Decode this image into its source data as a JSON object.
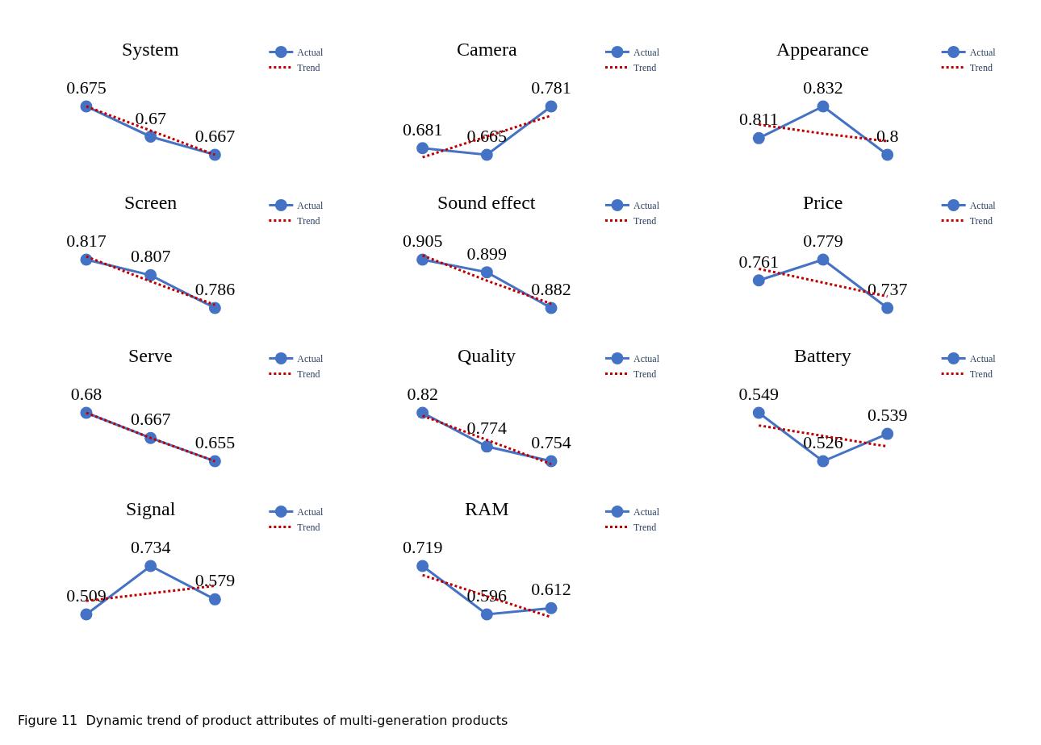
{
  "chart_data": [
    {
      "type": "line",
      "title": "System",
      "categories": [
        null,
        null,
        null
      ],
      "legend": "top right",
      "tick_labels": false,
      "series": [
        {
          "name": "Actual",
          "color": "#4472c4",
          "marker": "circle",
          "values": [
            0.675,
            0.67,
            0.667
          ],
          "value_labels": [
            "0.675",
            "0.67",
            "0.667"
          ]
        },
        {
          "name": "Trend",
          "color": "#c00000",
          "line_style": "dotted",
          "marker": "none",
          "values": [
            0.675,
            0.671,
            0.667
          ]
        }
      ]
    },
    {
      "type": "line",
      "title": "Camera",
      "categories": [
        null,
        null,
        null
      ],
      "legend": "top right",
      "tick_labels": false,
      "series": [
        {
          "name": "Actual",
          "color": "#4472c4",
          "marker": "circle",
          "values": [
            0.681,
            0.665,
            0.781
          ],
          "value_labels": [
            "0.681",
            "0.665",
            "0.781"
          ]
        },
        {
          "name": "Trend",
          "color": "#c00000",
          "line_style": "dotted",
          "marker": "none",
          "values": [
            0.659,
            0.709,
            0.759
          ]
        }
      ]
    },
    {
      "type": "line",
      "title": "Appearance",
      "categories": [
        null,
        null,
        null
      ],
      "legend": "top right",
      "tick_labels": false,
      "series": [
        {
          "name": "Actual",
          "color": "#4472c4",
          "marker": "circle",
          "values": [
            0.811,
            0.832,
            0.8
          ],
          "value_labels": [
            "0.811",
            "0.832",
            "0.8"
          ]
        },
        {
          "name": "Trend",
          "color": "#c00000",
          "line_style": "dotted",
          "marker": "none",
          "values": [
            0.82,
            0.814,
            0.809
          ]
        }
      ]
    },
    {
      "type": "line",
      "title": "Screen",
      "categories": [
        null,
        null,
        null
      ],
      "legend": "top right",
      "tick_labels": false,
      "series": [
        {
          "name": "Actual",
          "color": "#4472c4",
          "marker": "circle",
          "values": [
            0.817,
            0.807,
            0.786
          ],
          "value_labels": [
            "0.817",
            "0.807",
            "0.786"
          ]
        },
        {
          "name": "Trend",
          "color": "#c00000",
          "line_style": "dotted",
          "marker": "none",
          "values": [
            0.819,
            0.803,
            0.788
          ]
        }
      ]
    },
    {
      "type": "line",
      "title": "Sound effect",
      "categories": [
        null,
        null,
        null
      ],
      "legend": "top right",
      "tick_labels": false,
      "series": [
        {
          "name": "Actual",
          "color": "#4472c4",
          "marker": "circle",
          "values": [
            0.905,
            0.899,
            0.882
          ],
          "value_labels": [
            "0.905",
            "0.899",
            "0.882"
          ]
        },
        {
          "name": "Trend",
          "color": "#c00000",
          "line_style": "dotted",
          "marker": "none",
          "values": [
            0.907,
            0.895,
            0.884
          ]
        }
      ]
    },
    {
      "type": "line",
      "title": "Price",
      "categories": [
        null,
        null,
        null
      ],
      "legend": "top right",
      "tick_labels": false,
      "series": [
        {
          "name": "Actual",
          "color": "#4472c4",
          "marker": "circle",
          "values": [
            0.761,
            0.779,
            0.737
          ],
          "value_labels": [
            "0.761",
            "0.779",
            "0.737"
          ]
        },
        {
          "name": "Trend",
          "color": "#c00000",
          "line_style": "dotted",
          "marker": "none",
          "values": [
            0.771,
            0.759,
            0.747
          ]
        }
      ]
    },
    {
      "type": "line",
      "title": "Serve",
      "categories": [
        null,
        null,
        null
      ],
      "legend": "top right",
      "tick_labels": false,
      "series": [
        {
          "name": "Actual",
          "color": "#4472c4",
          "marker": "circle",
          "values": [
            0.68,
            0.667,
            0.655
          ],
          "value_labels": [
            "0.68",
            "0.667",
            "0.655"
          ]
        },
        {
          "name": "Trend",
          "color": "#c00000",
          "line_style": "dotted",
          "marker": "none",
          "values": [
            0.68,
            0.667,
            0.655
          ]
        }
      ]
    },
    {
      "type": "line",
      "title": "Quality",
      "categories": [
        null,
        null,
        null
      ],
      "legend": "top right",
      "tick_labels": false,
      "series": [
        {
          "name": "Actual",
          "color": "#4472c4",
          "marker": "circle",
          "values": [
            0.82,
            0.774,
            0.754
          ],
          "value_labels": [
            "0.82",
            "0.774",
            "0.754"
          ]
        },
        {
          "name": "Trend",
          "color": "#c00000",
          "line_style": "dotted",
          "marker": "none",
          "values": [
            0.816,
            0.783,
            0.75
          ]
        }
      ]
    },
    {
      "type": "line",
      "title": "Battery",
      "categories": [
        null,
        null,
        null
      ],
      "legend": "top right",
      "tick_labels": false,
      "series": [
        {
          "name": "Actual",
          "color": "#4472c4",
          "marker": "circle",
          "values": [
            0.549,
            0.526,
            0.539
          ],
          "value_labels": [
            "0.549",
            "0.526",
            "0.539"
          ]
        },
        {
          "name": "Trend",
          "color": "#c00000",
          "line_style": "dotted",
          "marker": "none",
          "values": [
            0.543,
            0.538,
            0.533
          ]
        }
      ]
    },
    {
      "type": "line",
      "title": "Signal",
      "categories": [
        null,
        null,
        null
      ],
      "legend": "top right",
      "tick_labels": false,
      "series": [
        {
          "name": "Actual",
          "color": "#4472c4",
          "marker": "circle",
          "values": [
            0.509,
            0.734,
            0.579
          ],
          "value_labels": [
            "0.509",
            "0.734",
            "0.579"
          ]
        },
        {
          "name": "Trend",
          "color": "#c00000",
          "line_style": "dotted",
          "marker": "none",
          "values": [
            0.572,
            0.607,
            0.642
          ]
        }
      ]
    },
    {
      "type": "line",
      "title": "RAM",
      "categories": [
        null,
        null,
        null
      ],
      "legend": "top right",
      "tick_labels": false,
      "annotations": [
        "Figure 11  Dynamic trend of product attributes of multi-generation products"
      ],
      "series": [
        {
          "name": "Actual",
          "color": "#4472c4",
          "marker": "circle",
          "values": [
            0.719,
            0.596,
            0.612
          ],
          "value_labels": [
            "0.719",
            "0.596",
            "0.612"
          ]
        },
        {
          "name": "Trend",
          "color": "#c00000",
          "line_style": "dotted",
          "marker": "none",
          "values": [
            0.696,
            0.642,
            0.589
          ]
        }
      ]
    }
  ]
}
